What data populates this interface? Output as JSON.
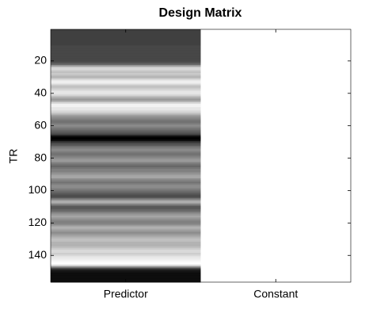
{
  "chart_data": {
    "type": "heatmap",
    "title": "Design Matrix",
    "ylabel": "TR",
    "colormap": "gray",
    "clim": [
      0,
      1
    ],
    "ylim": [
      0.5,
      156.5
    ],
    "yticks": [
      20,
      40,
      60,
      80,
      100,
      120,
      140
    ],
    "columns": [
      {
        "label": "Predictor",
        "values": [
          0.25,
          0.25,
          0.25,
          0.25,
          0.25,
          0.25,
          0.25,
          0.25,
          0.25,
          0.25,
          0.28,
          0.28,
          0.28,
          0.28,
          0.28,
          0.28,
          0.28,
          0.28,
          0.28,
          0.28,
          0.32,
          0.4,
          0.6,
          0.8,
          0.85,
          0.8,
          0.75,
          0.8,
          0.75,
          0.7,
          0.8,
          0.9,
          0.95,
          0.9,
          0.8,
          0.75,
          0.8,
          0.85,
          0.9,
          0.9,
          0.85,
          0.75,
          0.65,
          0.6,
          0.7,
          0.85,
          0.95,
          0.95,
          0.9,
          0.9,
          0.85,
          0.8,
          0.7,
          0.6,
          0.55,
          0.5,
          0.45,
          0.45,
          0.5,
          0.55,
          0.5,
          0.45,
          0.4,
          0.35,
          0.3,
          0.15,
          0.02,
          0,
          0.05,
          0.2,
          0.3,
          0.35,
          0.45,
          0.5,
          0.55,
          0.5,
          0.45,
          0.45,
          0.5,
          0.55,
          0.6,
          0.6,
          0.5,
          0.45,
          0.4,
          0.45,
          0.5,
          0.5,
          0.55,
          0.6,
          0.65,
          0.65,
          0.55,
          0.5,
          0.45,
          0.5,
          0.55,
          0.55,
          0.5,
          0.45,
          0.4,
          0.35,
          0.3,
          0.3,
          0.45,
          0.6,
          0.7,
          0.6,
          0.45,
          0.35,
          0.35,
          0.4,
          0.45,
          0.55,
          0.6,
          0.65,
          0.6,
          0.55,
          0.5,
          0.5,
          0.55,
          0.65,
          0.7,
          0.65,
          0.6,
          0.55,
          0.6,
          0.65,
          0.7,
          0.75,
          0.75,
          0.7,
          0.7,
          0.7,
          0.75,
          0.8,
          0.85,
          0.85,
          0.8,
          0.85,
          0.9,
          0.92,
          0.95,
          0.98,
          1,
          0.9,
          0.6,
          0.3,
          0.12,
          0.08,
          0.05,
          0.05,
          0.05,
          0.05,
          0.05,
          0.05
        ]
      },
      {
        "label": "Constant",
        "values": [
          1,
          1,
          1,
          1,
          1,
          1,
          1,
          1,
          1,
          1,
          1,
          1,
          1,
          1,
          1,
          1,
          1,
          1,
          1,
          1,
          1,
          1,
          1,
          1,
          1,
          1,
          1,
          1,
          1,
          1,
          1,
          1,
          1,
          1,
          1,
          1,
          1,
          1,
          1,
          1,
          1,
          1,
          1,
          1,
          1,
          1,
          1,
          1,
          1,
          1,
          1,
          1,
          1,
          1,
          1,
          1,
          1,
          1,
          1,
          1,
          1,
          1,
          1,
          1,
          1,
          1,
          1,
          1,
          1,
          1,
          1,
          1,
          1,
          1,
          1,
          1,
          1,
          1,
          1,
          1,
          1,
          1,
          1,
          1,
          1,
          1,
          1,
          1,
          1,
          1,
          1,
          1,
          1,
          1,
          1,
          1,
          1,
          1,
          1,
          1,
          1,
          1,
          1,
          1,
          1,
          1,
          1,
          1,
          1,
          1,
          1,
          1,
          1,
          1,
          1,
          1,
          1,
          1,
          1,
          1,
          1,
          1,
          1,
          1,
          1,
          1,
          1,
          1,
          1,
          1,
          1,
          1,
          1,
          1,
          1,
          1,
          1,
          1,
          1,
          1,
          1,
          1,
          1,
          1,
          1,
          1,
          1,
          1,
          1,
          1,
          1,
          1,
          1,
          1,
          1,
          1
        ]
      }
    ]
  }
}
